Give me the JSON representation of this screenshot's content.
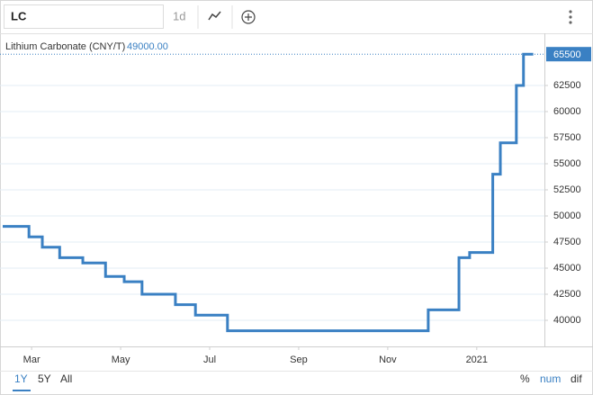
{
  "ui": {
    "symbol": "LC",
    "interval": "1d",
    "ranges": [
      "1Y",
      "5Y",
      "All"
    ],
    "modes": [
      "%",
      "num",
      "dif"
    ]
  },
  "chart_data": {
    "type": "line",
    "step": true,
    "legend_value_label": "49000.00",
    "x": [
      2.35,
      2.94,
      3.24,
      3.63,
      4.15,
      4.66,
      5.08,
      5.48,
      6.23,
      6.68,
      7.4,
      11.91,
      12.6,
      12.84,
      13.36,
      13.53,
      13.89,
      14.05,
      14.27
    ],
    "series": [
      {
        "name": "Lithium Carbonate (CNY/T)",
        "color": "#3a80c3",
        "values": [
          49000,
          48000,
          47000,
          46000,
          45500,
          44200,
          43700,
          42500,
          41500,
          40500,
          39000,
          41000,
          46000,
          46500,
          54000,
          57000,
          62500,
          65500,
          65500
        ]
      }
    ],
    "xlim": [
      2.35,
      14.52
    ],
    "xticks": [
      {
        "value": 3,
        "label": "Mar"
      },
      {
        "value": 5,
        "label": "May"
      },
      {
        "value": 7,
        "label": "Jul"
      },
      {
        "value": 9,
        "label": "Sep"
      },
      {
        "value": 11,
        "label": "Nov"
      },
      {
        "value": 13,
        "label": "2021"
      }
    ],
    "ylim": [
      37500,
      67500
    ],
    "yticks": [
      40000,
      42500,
      45000,
      47500,
      50000,
      52500,
      55000,
      57500,
      60000,
      62500
    ],
    "grid": true
  }
}
